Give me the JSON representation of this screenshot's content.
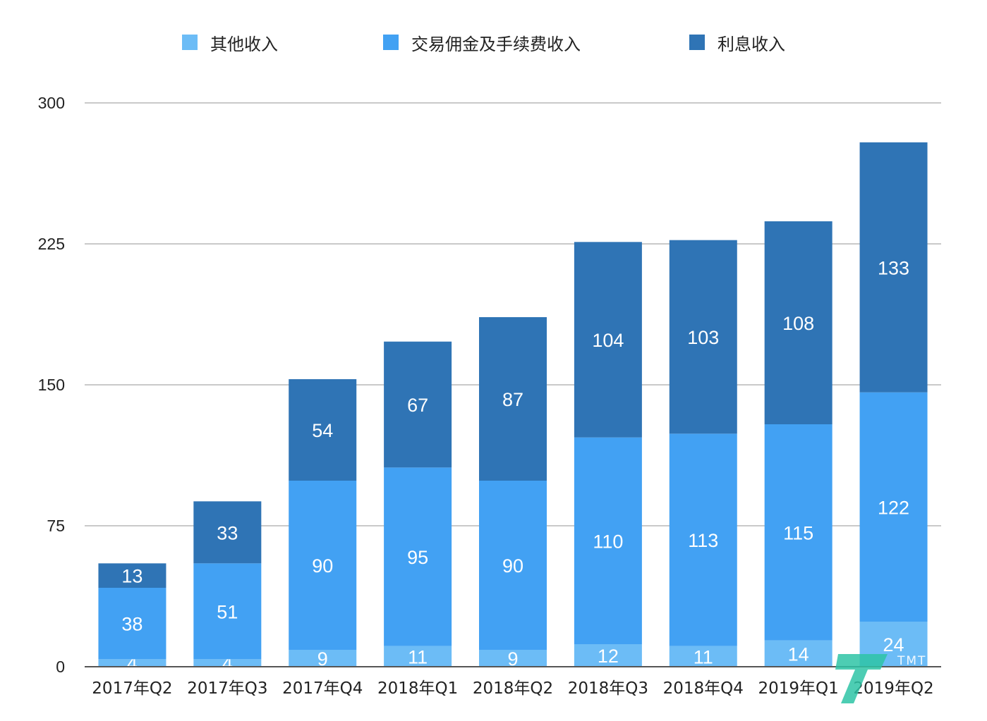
{
  "chart_data": {
    "type": "bar",
    "stacked": true,
    "categories": [
      "2017年Q2",
      "2017年Q3",
      "2017年Q4",
      "2018年Q1",
      "2018年Q2",
      "2018年Q3",
      "2018年Q4",
      "2019年Q1",
      "2019年Q2"
    ],
    "series": [
      {
        "name": "其他收入",
        "color": "#6cbcf6",
        "values": [
          4,
          4,
          9,
          11,
          9,
          12,
          11,
          14,
          24
        ]
      },
      {
        "name": "交易佣金及手续费收入",
        "color": "#42a1f3",
        "values": [
          38,
          51,
          90,
          95,
          90,
          110,
          113,
          115,
          122
        ]
      },
      {
        "name": "利息收入",
        "color": "#2f74b5",
        "values": [
          13,
          33,
          54,
          67,
          87,
          104,
          103,
          108,
          133
        ]
      }
    ],
    "ylim": [
      0,
      300
    ],
    "yticks": [
      0,
      75,
      150,
      225,
      300
    ],
    "grid": true,
    "legend_position": "top",
    "title": "",
    "xlabel": "",
    "ylabel": ""
  },
  "watermark": {
    "text": "TMTPOST",
    "icon": "tmtpost-logo-icon"
  }
}
